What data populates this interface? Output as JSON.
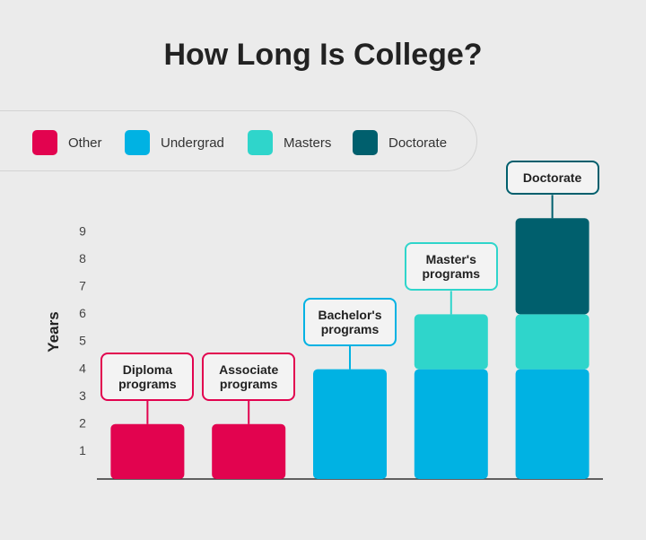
{
  "chart_data": {
    "type": "bar",
    "stacked": true,
    "title": "How Long Is College?",
    "y_label": "Years",
    "categories": [
      "Diploma programs",
      "Associate programs",
      "Bachelor's programs",
      "Master's programs",
      "Doctorate"
    ],
    "series": [
      {
        "name": "Other",
        "color": "#e2034f",
        "values": [
          2,
          2,
          0,
          0,
          0
        ]
      },
      {
        "name": "Undergrad",
        "color": "#00b2e3",
        "values": [
          0,
          0,
          4,
          4,
          4
        ]
      },
      {
        "name": "Masters",
        "color": "#2fd5cb",
        "values": [
          0,
          0,
          0,
          2,
          2
        ]
      },
      {
        "name": "Doctorate",
        "color": "#005f6d",
        "values": [
          0,
          0,
          0,
          0,
          3.5
        ]
      }
    ],
    "ylim": [
      0,
      10
    ],
    "yticks": [
      1,
      2,
      3,
      4,
      5,
      6,
      7,
      8,
      9
    ]
  }
}
